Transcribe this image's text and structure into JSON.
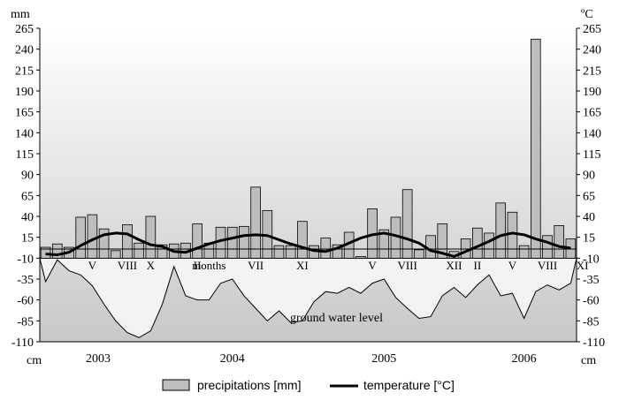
{
  "chart_data": {
    "type": "bar+line+area",
    "y_unit_left": "mm",
    "y_unit_right": "ºC",
    "groundwater_unit": "cm",
    "ylim": [
      -110,
      265
    ],
    "yticks": [
      265,
      240,
      215,
      190,
      165,
      140,
      115,
      90,
      65,
      40,
      15,
      -10,
      -35,
      -60,
      -85,
      -110
    ],
    "years": [
      "2003",
      "2004",
      "2005",
      "2006"
    ],
    "month_labels": [
      {
        "label": "V",
        "x": 4
      },
      {
        "label": "VIII",
        "x": 7
      },
      {
        "label": "X",
        "x": 9
      },
      {
        "label": "II",
        "x": 13
      },
      {
        "label": "months",
        "x": 14
      },
      {
        "label": "VII",
        "x": 18
      },
      {
        "label": "XI",
        "x": 22
      },
      {
        "label": "V",
        "x": 28
      },
      {
        "label": "VIII",
        "x": 31
      },
      {
        "label": "XII",
        "x": 35
      },
      {
        "label": "II",
        "x": 37
      },
      {
        "label": "V",
        "x": 40
      },
      {
        "label": "VIII",
        "x": 43
      },
      {
        "label": "XI",
        "x": 46
      }
    ],
    "gw_annotation": "ground water level",
    "legend": {
      "precip": "precipitations [mm]",
      "temp": "temperature [°C]"
    },
    "series": [
      {
        "name": "precipitations [mm]",
        "values": [
          13,
          17,
          13,
          49,
          52,
          35,
          9,
          40,
          18,
          50,
          16,
          17,
          18,
          41,
          18,
          37,
          37,
          38,
          85,
          57,
          15,
          15,
          44,
          15,
          24,
          16,
          31,
          2,
          59,
          34,
          49,
          82,
          10,
          27,
          41,
          8,
          23,
          36,
          30,
          66,
          55,
          15,
          262,
          27,
          39,
          23
        ]
      },
      {
        "name": "temperature [°C]",
        "values": [
          -5,
          -6,
          -3,
          5,
          12,
          18,
          20,
          19,
          12,
          6,
          4,
          -2,
          -3,
          2,
          7,
          11,
          14,
          17,
          18,
          17,
          12,
          7,
          3,
          -1,
          -2,
          2,
          8,
          14,
          18,
          20,
          17,
          13,
          8,
          -1,
          -4,
          -8,
          -2,
          4,
          10,
          17,
          20,
          18,
          13,
          9,
          4,
          2
        ]
      },
      {
        "name": "ground water level",
        "values": [
          -38,
          -12,
          -25,
          -30,
          -43,
          -65,
          -85,
          -99,
          -105,
          -97,
          -65,
          -20,
          -55,
          -60,
          -60,
          -40,
          -35,
          -55,
          -70,
          -85,
          -73,
          -87,
          -85,
          -62,
          -50,
          -52,
          -45,
          -52,
          -40,
          -35,
          -57,
          -70,
          -82,
          -80,
          -55,
          -45,
          -57,
          -42,
          -30,
          -55,
          -52,
          -82,
          -50,
          -42,
          -48,
          -40
        ]
      }
    ]
  }
}
